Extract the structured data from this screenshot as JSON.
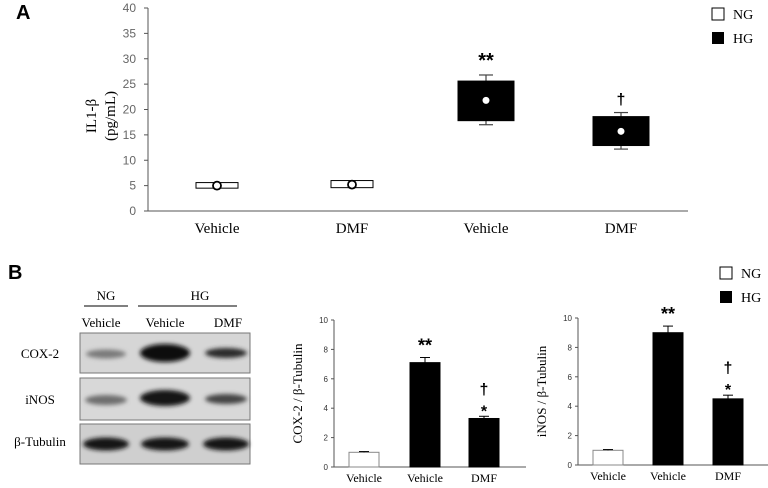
{
  "panels": {
    "a_label": "A",
    "b_label": "B"
  },
  "legend_a": {
    "ng": "NG",
    "hg": "HG"
  },
  "legend_b": {
    "ng": "NG",
    "hg": "HG"
  },
  "western_blot": {
    "group_labels": [
      "NG",
      "HG"
    ],
    "lane_labels": [
      "Vehicle",
      "Vehicle",
      "DMF"
    ],
    "row_labels": [
      "COX-2",
      "iNOS",
      "β-Tubulin"
    ]
  },
  "colors": {
    "ng_fill": "#ffffff",
    "hg_fill": "#000000",
    "axis": "#555555",
    "tick_text": "#666666"
  },
  "chart_data": [
    {
      "id": "il1b",
      "type": "box",
      "ylabel": "IL1-β (pg/mL)",
      "ylim": [
        0,
        40
      ],
      "yticks": [
        0,
        5,
        10,
        15,
        20,
        25,
        30,
        35,
        40
      ],
      "categories": [
        "Vehicle",
        "DMF",
        "Vehicle",
        "DMF"
      ],
      "series": [
        {
          "name": "NG",
          "color": "#ffffff",
          "category_index": [
            0,
            1
          ]
        },
        {
          "name": "HG",
          "color": "#000000",
          "category_index": [
            2,
            3
          ]
        }
      ],
      "boxes": [
        {
          "group": "NG",
          "q1": 4.5,
          "q3": 5.6,
          "mean": 5.0,
          "whisker_low": null,
          "whisker_high": null,
          "annotation": ""
        },
        {
          "group": "NG",
          "q1": 4.6,
          "q3": 6.0,
          "mean": 5.2,
          "whisker_low": null,
          "whisker_high": null,
          "annotation": ""
        },
        {
          "group": "HG",
          "q1": 17.8,
          "q3": 25.6,
          "mean": 21.8,
          "whisker_low": 17.0,
          "whisker_high": 26.8,
          "annotation": "**"
        },
        {
          "group": "HG",
          "q1": 12.9,
          "q3": 18.6,
          "mean": 15.7,
          "whisker_low": 12.2,
          "whisker_high": 19.4,
          "annotation": "†"
        }
      ]
    },
    {
      "id": "cox2",
      "type": "bar",
      "ylabel": "COX-2 / β-Tubulin",
      "ylim": [
        0,
        10
      ],
      "yticks": [
        0,
        2,
        4,
        6,
        8,
        10
      ],
      "categories": [
        "Vehicle",
        "Vehicle",
        "DMF"
      ],
      "values": [
        1.0,
        7.1,
        3.3
      ],
      "errors": [
        0.05,
        0.35,
        0.15
      ],
      "groups": [
        "NG",
        "HG",
        "HG"
      ],
      "annotations": [
        [],
        [
          "**"
        ],
        [
          "†",
          "*"
        ]
      ]
    },
    {
      "id": "inos",
      "type": "bar",
      "ylabel": "iNOS / β-Tubulin",
      "ylim": [
        0,
        10
      ],
      "yticks": [
        0,
        2,
        4,
        6,
        8,
        10
      ],
      "categories": [
        "Vehicle",
        "Vehicle",
        "DMF"
      ],
      "values": [
        1.0,
        9.0,
        4.5
      ],
      "errors": [
        0.05,
        0.45,
        0.25
      ],
      "groups": [
        "NG",
        "HG",
        "HG"
      ],
      "annotations": [
        [],
        [
          "**"
        ],
        [
          "†",
          "*"
        ]
      ]
    }
  ]
}
